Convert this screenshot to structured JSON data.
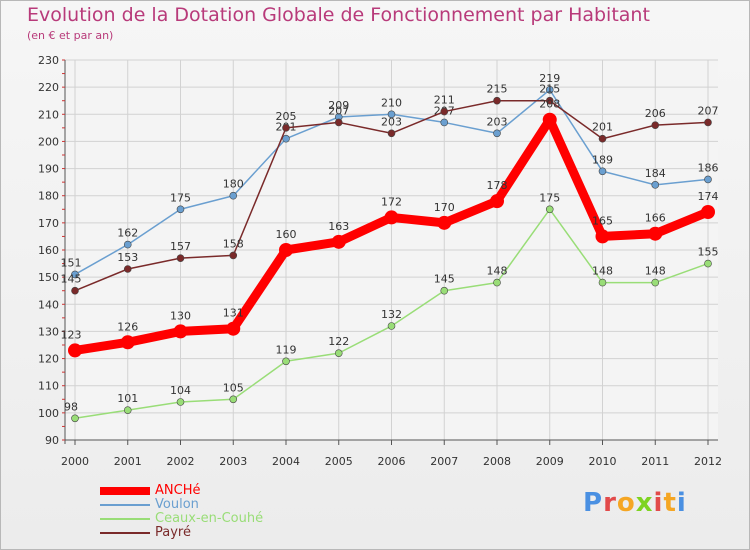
{
  "chart_data": {
    "type": "line",
    "title": "Evolution de la Dotation Globale de Fonctionnement par Habitant",
    "subtitle": "(en € et par an)",
    "xlabel": "",
    "ylabel": "",
    "ylim": [
      90,
      230
    ],
    "yticks": [
      90,
      100,
      110,
      120,
      130,
      140,
      150,
      160,
      170,
      180,
      190,
      200,
      210,
      220,
      230
    ],
    "x": [
      "2000",
      "2001",
      "2002",
      "2003",
      "2004",
      "2005",
      "2006",
      "2007",
      "2008",
      "2009",
      "2010",
      "2011",
      "2012"
    ],
    "grid": true,
    "legend_position": "bottom-left",
    "series": [
      {
        "name": "ANCHé",
        "color": "#ff0000",
        "values": [
          123,
          126,
          130,
          131,
          160,
          163,
          172,
          170,
          178,
          208,
          165,
          166,
          174
        ]
      },
      {
        "name": "Voulon",
        "color": "#6a9fd0",
        "values": [
          151,
          162,
          175,
          180,
          201,
          209,
          210,
          207,
          203,
          219,
          189,
          184,
          186
        ]
      },
      {
        "name": "Ceaux-en-Couhé",
        "color": "#99dd77",
        "values": [
          98,
          101,
          104,
          105,
          119,
          122,
          132,
          145,
          148,
          175,
          148,
          148,
          155
        ]
      },
      {
        "name": "Payré",
        "color": "#7a2a2a",
        "values": [
          145,
          153,
          157,
          158,
          205,
          207,
          203,
          211,
          215,
          215,
          201,
          206,
          207
        ]
      }
    ]
  },
  "branding": {
    "logo_letters": [
      "P",
      "r",
      "o",
      "x",
      "i",
      "t",
      "i"
    ],
    "logo_colors": [
      "#4a90e2",
      "#e24a4a",
      "#f5a623",
      "#7ed321",
      "#e24a4a",
      "#f5a623",
      "#4a90e2"
    ]
  }
}
